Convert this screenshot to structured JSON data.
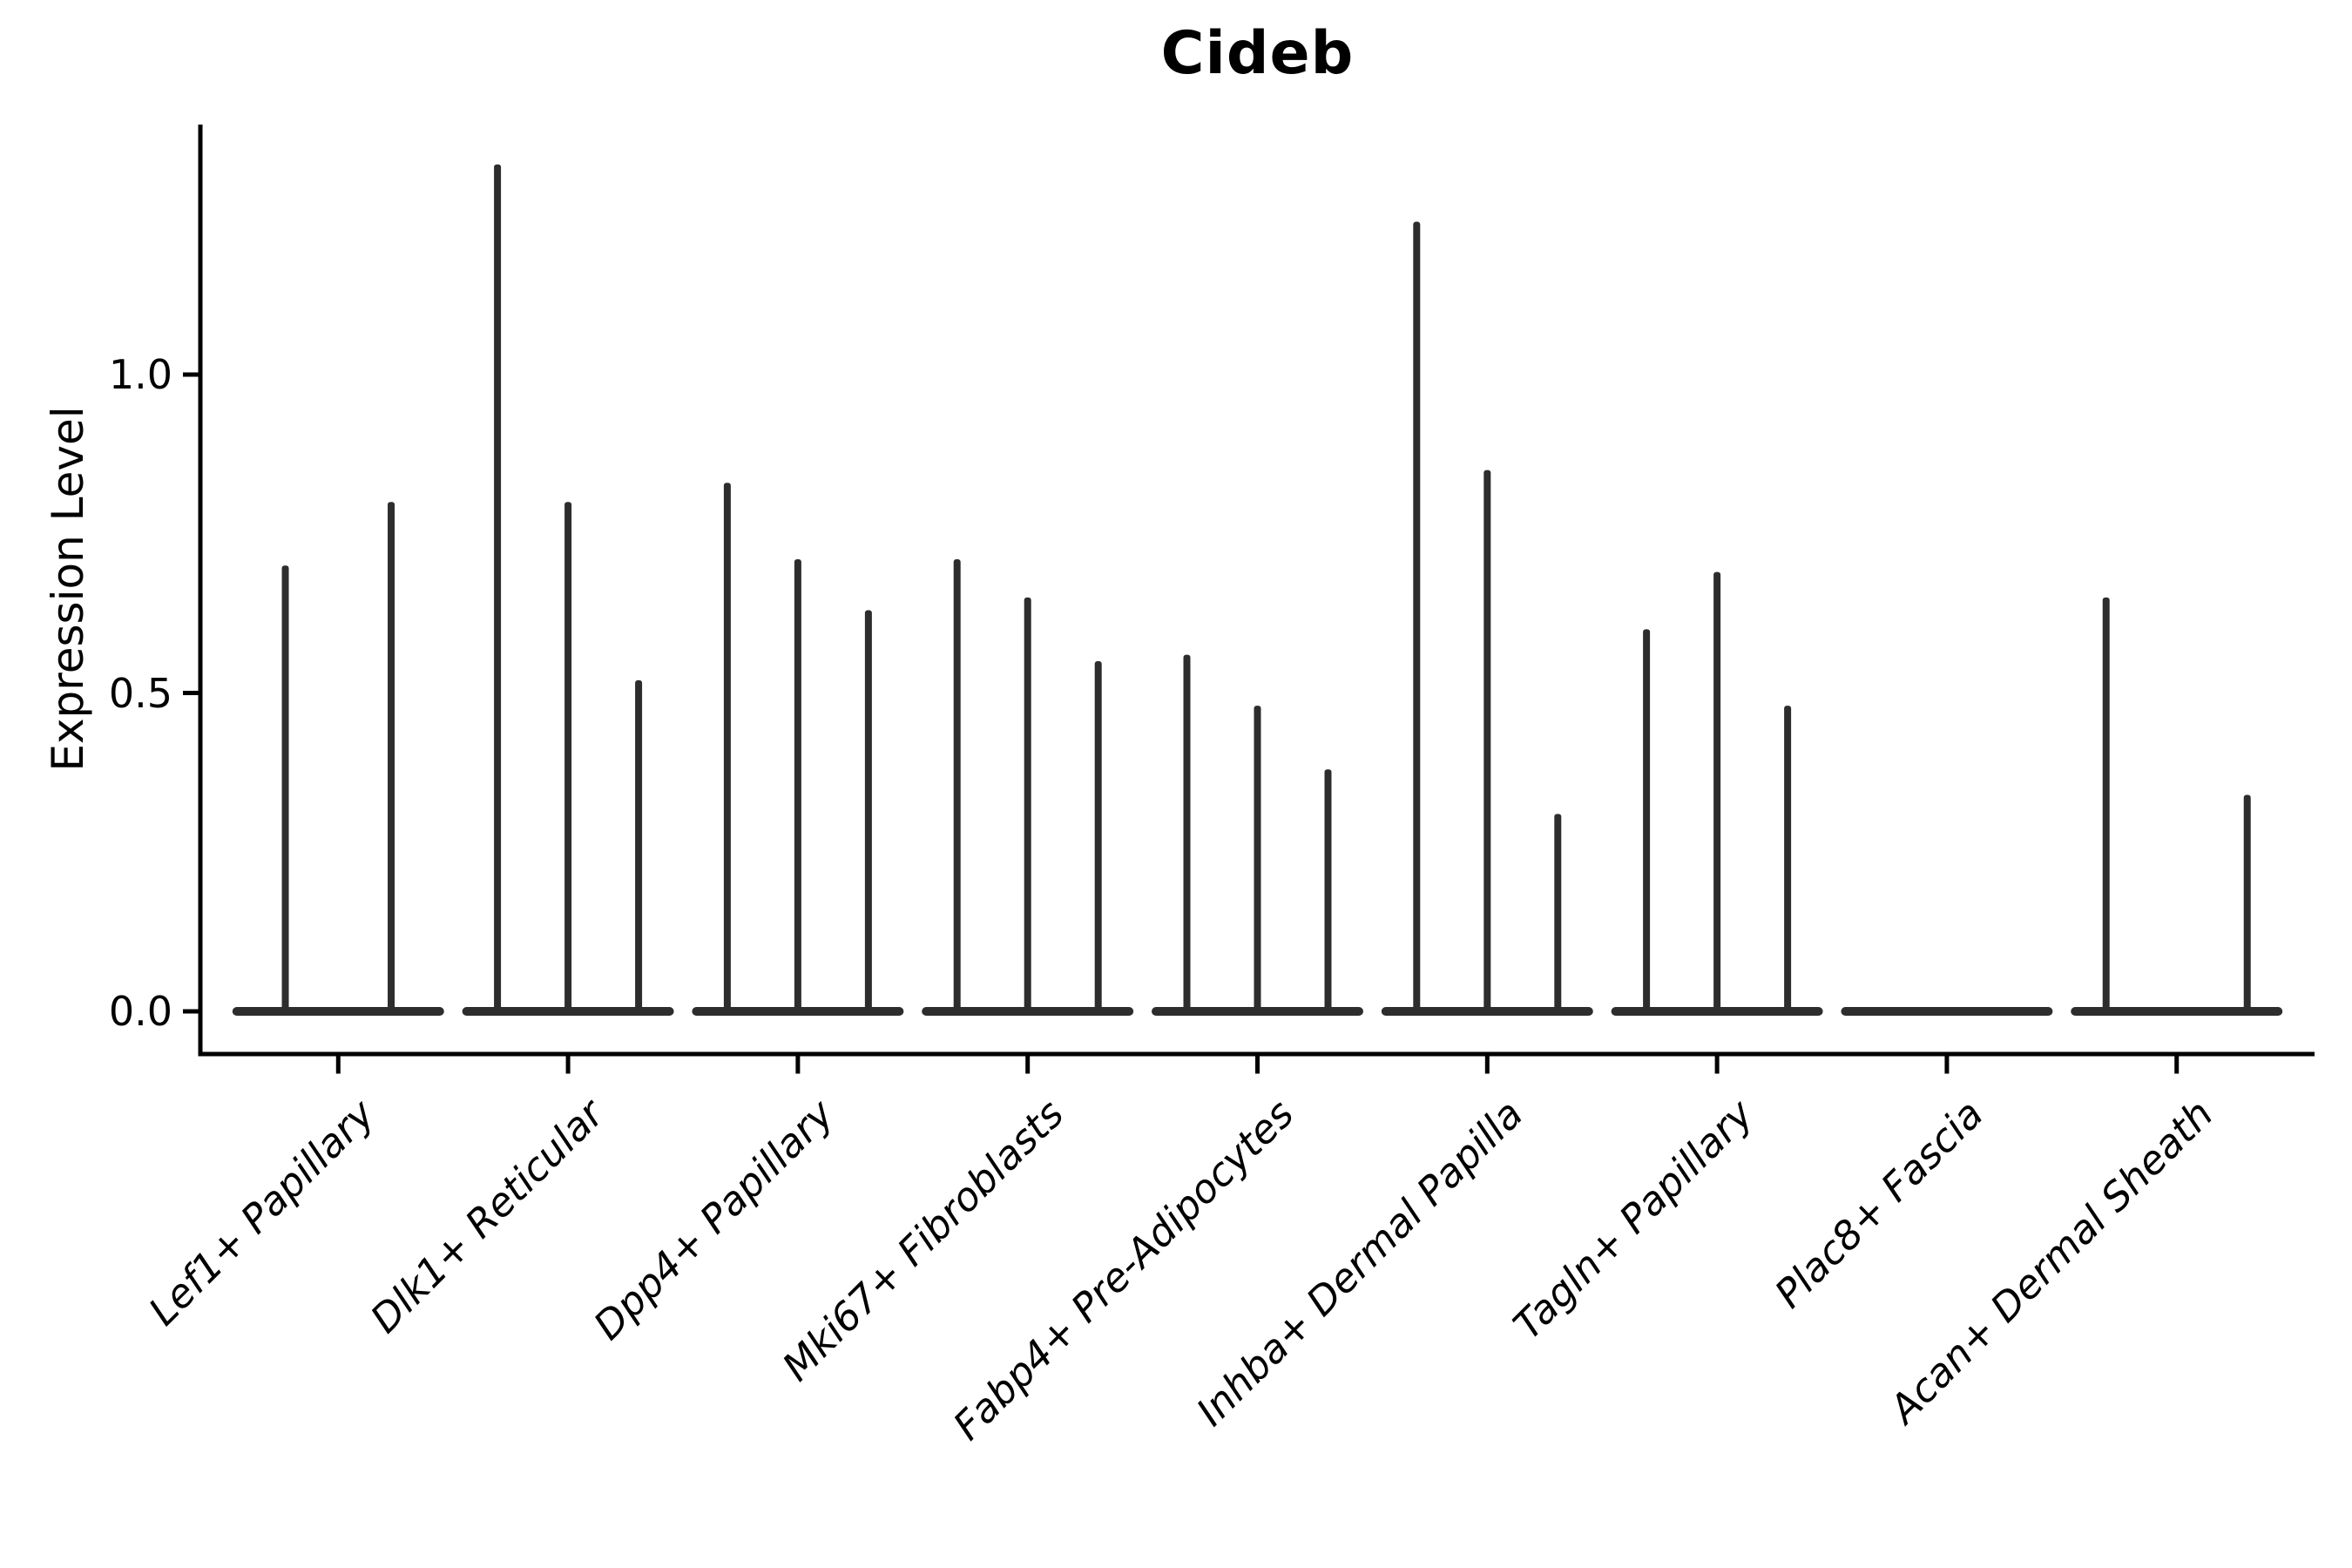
{
  "title": "Cideb",
  "ylabel": "Expression Level",
  "chart_data": {
    "type": "violin",
    "title": "Cideb",
    "xlabel": "",
    "ylabel": "Expression Level",
    "ylim": [
      -0.07,
      1.39
    ],
    "yticks": [
      0.0,
      0.5,
      1.0
    ],
    "ytick_labels": [
      "0.0",
      "0.5",
      "1.0"
    ],
    "grid": false,
    "legend": "none",
    "x_tick_rotation": 45,
    "x_tick_style": "italic",
    "categories": [
      "Lef1+ Papillary",
      "Dlk1+ Reticular",
      "Dpp4+ Papillary",
      "Mki67+ Fibroblasts",
      "Fabp4+ Pre-Adipocytes",
      "Inhba+ Dermal Papilla",
      "Tagln+ Papillary",
      "Plac8+ Fascia",
      "Acan+ Dermal Sheath"
    ],
    "series": [
      {
        "category": "Lef1+ Papillary",
        "violins": [
          0.7,
          0.8
        ]
      },
      {
        "category": "Dlk1+ Reticular",
        "violins": [
          1.33,
          0.8,
          0.52
        ]
      },
      {
        "category": "Dpp4+ Papillary",
        "violins": [
          0.83,
          0.71,
          0.63
        ]
      },
      {
        "category": "Mki67+ Fibroblasts",
        "violins": [
          0.71,
          0.65,
          0.55
        ]
      },
      {
        "category": "Fabp4+ Pre-Adipocytes",
        "violins": [
          0.56,
          0.48,
          0.38
        ]
      },
      {
        "category": "Inhba+ Dermal Papilla",
        "violins": [
          1.24,
          0.85,
          0.31
        ]
      },
      {
        "category": "Tagln+ Papillary",
        "violins": [
          0.6,
          0.69,
          0.48
        ]
      },
      {
        "category": "Plac8+ Fascia",
        "violins": [
          0,
          0,
          0
        ]
      },
      {
        "category": "Acan+ Dermal Sheath",
        "violins": [
          0.65,
          0,
          0.34
        ]
      }
    ],
    "style": {
      "violin_color": "#2d2d2d",
      "axis_color": "#000000",
      "text_color": "#000000",
      "background": "#ffffff"
    }
  }
}
